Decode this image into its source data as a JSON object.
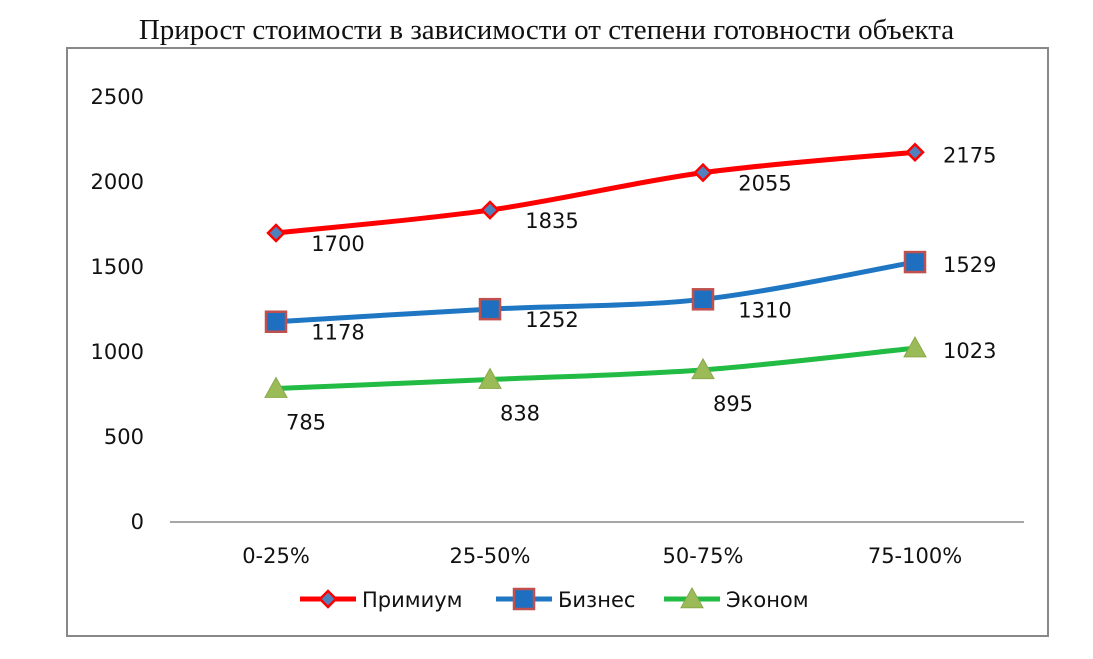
{
  "chart_data": {
    "type": "line",
    "title": "Прирост стоимости в зависимости от степени готовности объекта",
    "xlabel": "",
    "ylabel": "",
    "categories": [
      "0-25%",
      "25-50%",
      "50-75%",
      "75-100%"
    ],
    "ylim": [
      0,
      2500
    ],
    "yticks": [
      0,
      500,
      1000,
      1500,
      2000,
      2500
    ],
    "grid": false,
    "legend": "bottom",
    "series": [
      {
        "name": "Примиум",
        "values": [
          1700,
          1835,
          2055,
          2175
        ],
        "color": "#ff0000",
        "marker": "diamond",
        "marker_color": "#4f81bd"
      },
      {
        "name": "Бизнес",
        "values": [
          1178,
          1252,
          1310,
          1529
        ],
        "color": "#1f77c4",
        "marker": "square",
        "marker_color": "#1f6fc0"
      },
      {
        "name": "Эконом",
        "values": [
          785,
          838,
          895,
          1023
        ],
        "color": "#22bb44",
        "marker": "triangle",
        "marker_color": "#9bbb59"
      }
    ]
  }
}
